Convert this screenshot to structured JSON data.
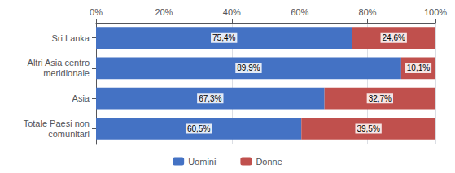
{
  "chart_data": {
    "type": "bar",
    "orientation": "horizontal",
    "stacked": true,
    "categories": [
      "Sri Lanka",
      "Altri Asia centro\nmeridionale",
      "Asia",
      "Totale Paesi non\ncomunitari"
    ],
    "series": [
      {
        "name": "Uomini",
        "color": "#4472C4",
        "values": [
          75.4,
          89.9,
          67.3,
          60.5
        ],
        "value_labels": [
          "75,4%",
          "89,9%",
          "67,3%",
          "60,5%"
        ]
      },
      {
        "name": "Donne",
        "color": "#C0504D",
        "values": [
          24.6,
          10.1,
          32.7,
          39.5
        ],
        "value_labels": [
          "24,6%",
          "10,1%",
          "32,7%",
          "39,5%"
        ]
      }
    ],
    "xlim": [
      0,
      100
    ],
    "xticks": [
      {
        "value": 0,
        "label": "0%"
      },
      {
        "value": 20,
        "label": "20%"
      },
      {
        "value": 40,
        "label": "40%"
      },
      {
        "value": 60,
        "label": "60%"
      },
      {
        "value": 80,
        "label": "80%"
      },
      {
        "value": 100,
        "label": "100%"
      }
    ],
    "grid": true,
    "legend": "bottom",
    "data_labels": true
  }
}
